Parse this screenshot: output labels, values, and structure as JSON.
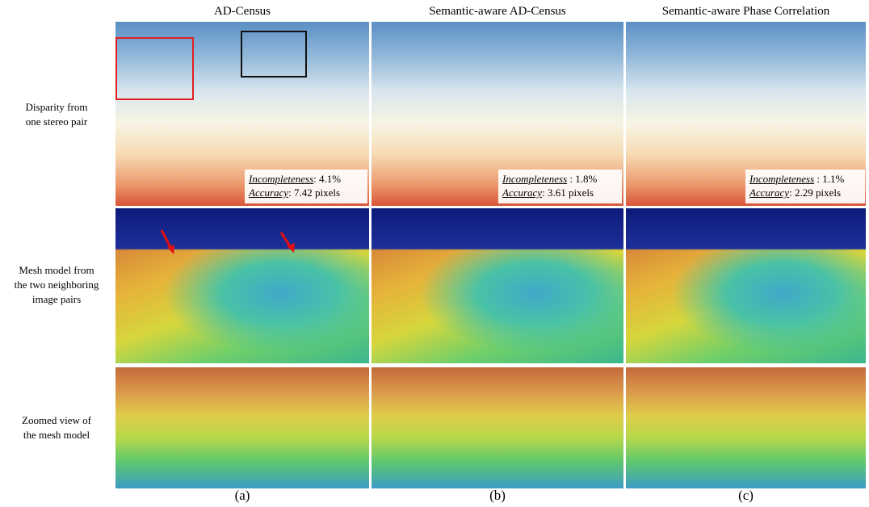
{
  "columns": [
    {
      "title": "AD-Census",
      "caption": "(a)",
      "incompleteness": {
        "label": "Incompleteness",
        "value": ": 4.1%"
      },
      "accuracy": {
        "label": "Accuracy",
        "value": ": 7.42 pixels"
      }
    },
    {
      "title": "Semantic-aware AD-Census",
      "caption": "(b)",
      "incompleteness": {
        "label": "Incompleteness",
        "value": " : 1.8%"
      },
      "accuracy": {
        "label": "Accuracy",
        "value": ": 3.61 pixels"
      }
    },
    {
      "title": "Semantic-aware Phase Correlation",
      "caption": "(c)",
      "incompleteness": {
        "label": "Incompleteness",
        "value": " : 1.1%"
      },
      "accuracy": {
        "label": "Accuracy",
        "value": ": 2.29 pixels"
      }
    }
  ],
  "rows": [
    {
      "label_lines": [
        "Disparity from",
        "one stereo pair"
      ]
    },
    {
      "label_lines": [
        "Mesh model from",
        "the two neighboring",
        "image pairs"
      ]
    },
    {
      "label_lines": [
        "Zoomed view of",
        "the mesh model"
      ]
    }
  ]
}
